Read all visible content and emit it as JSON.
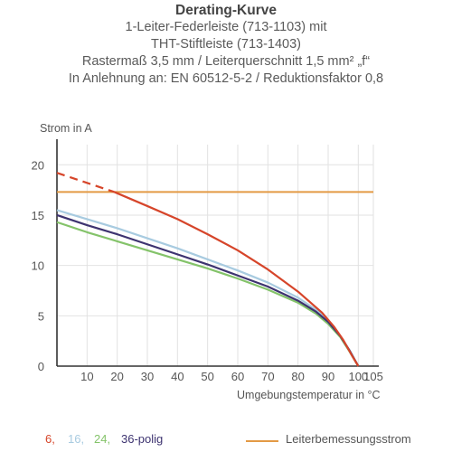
{
  "titles": {
    "title": "Derating-Kurve",
    "line1": "1-Leiter-Federleiste (713-1103) mit",
    "line2": "THT-Stiftleiste (713-1403)",
    "line3": "Rastermaß 3,5 mm / Leiterquerschnitt 1,5 mm² „f“",
    "line4": "In Anlehnung an: EN 60512-5-2 / Reduktionsfaktor 0,8"
  },
  "chart_data": {
    "type": "line",
    "ylabel": "Strom in A",
    "xlabel": "Umgebungstemperatur in °C",
    "xlim": [
      0,
      105
    ],
    "ylim": [
      0,
      22
    ],
    "x_ticks": [
      10,
      20,
      30,
      40,
      50,
      60,
      70,
      80,
      90,
      100,
      105
    ],
    "y_ticks": [
      0,
      5,
      10,
      15,
      20
    ],
    "grid": true,
    "series": [
      {
        "name": "6,",
        "color": "#d6452a",
        "dashed_until_x": 19,
        "x": [
          0,
          10,
          19,
          30,
          40,
          50,
          60,
          70,
          80,
          88,
          92,
          95,
          98,
          100
        ],
        "y": [
          19.2,
          18.2,
          17.3,
          15.9,
          14.6,
          13.1,
          11.5,
          9.6,
          7.4,
          5.3,
          3.9,
          2.6,
          1.0,
          0
        ]
      },
      {
        "name": "16,",
        "color": "#a8cbe0",
        "x": [
          0,
          10,
          20,
          30,
          40,
          50,
          60,
          70,
          80,
          86,
          90,
          94,
          97,
          100
        ],
        "y": [
          15.5,
          14.6,
          13.7,
          12.7,
          11.7,
          10.6,
          9.5,
          8.3,
          6.8,
          5.6,
          4.5,
          3.0,
          1.6,
          0
        ]
      },
      {
        "name": "24,",
        "color": "#84c36a",
        "x": [
          0,
          10,
          20,
          30,
          40,
          50,
          60,
          70,
          80,
          86,
          90,
          94,
          97,
          100
        ],
        "y": [
          14.3,
          13.3,
          12.4,
          11.5,
          10.6,
          9.7,
          8.7,
          7.6,
          6.3,
          5.2,
          4.2,
          2.9,
          1.5,
          0
        ]
      },
      {
        "name": "36-polig",
        "color": "#3d3370",
        "x": [
          0,
          10,
          20,
          30,
          40,
          50,
          60,
          70,
          80,
          86,
          90,
          94,
          97,
          100
        ],
        "y": [
          15.0,
          14.0,
          13.1,
          12.1,
          11.1,
          10.1,
          9.0,
          7.9,
          6.5,
          5.4,
          4.4,
          3.0,
          1.6,
          0
        ]
      }
    ],
    "reference_line": {
      "name": "Leiterbemessungsstrom",
      "y": 17.3,
      "color": "#e39a45"
    }
  }
}
